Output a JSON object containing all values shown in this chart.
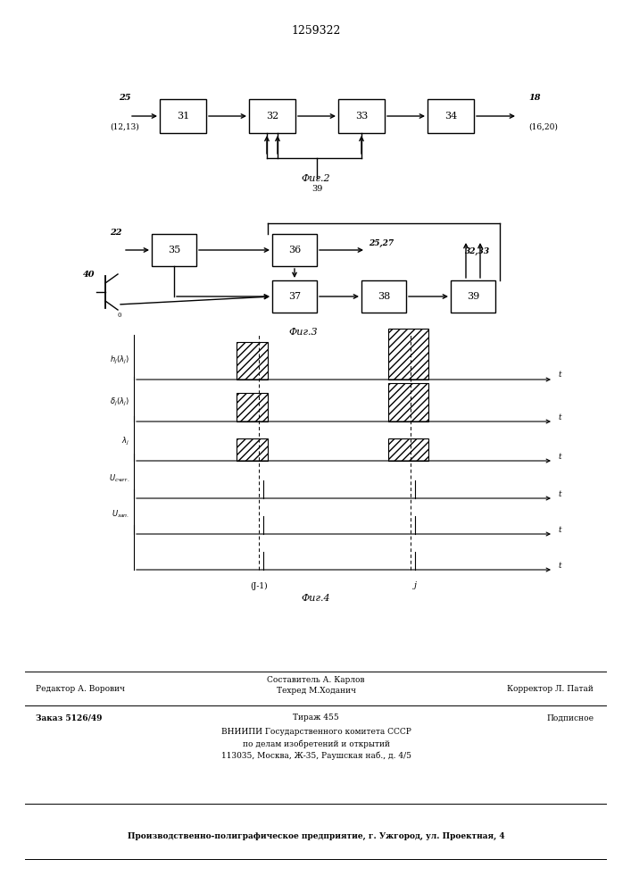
{
  "title": "1259322",
  "fig2_label": "Фиг.2",
  "fig3_label": "Фиг.3",
  "fig4_label": "Фиг.4",
  "footer": {
    "line1_left": "Редактор А. Ворович",
    "line1_center_top": "Составитель А. Карлов",
    "line1_center_bot": "Техред М.Ходанич",
    "line1_right": "Корректор Л. Патай",
    "line2_left": "Заказ 5126/49",
    "line2_center": "Тираж 455",
    "line2_right": "Подписное",
    "line3": "ВНИИПИ Государственного комитета СССР",
    "line3b": "по делам изобретений и открытий",
    "line3c": "113035, Москва, Ж-35, Раушская наб., д. 4/5",
    "line4": "Производственно-полиграфическое предприятие, г. Ужгород, ул. Проектная, 4"
  }
}
